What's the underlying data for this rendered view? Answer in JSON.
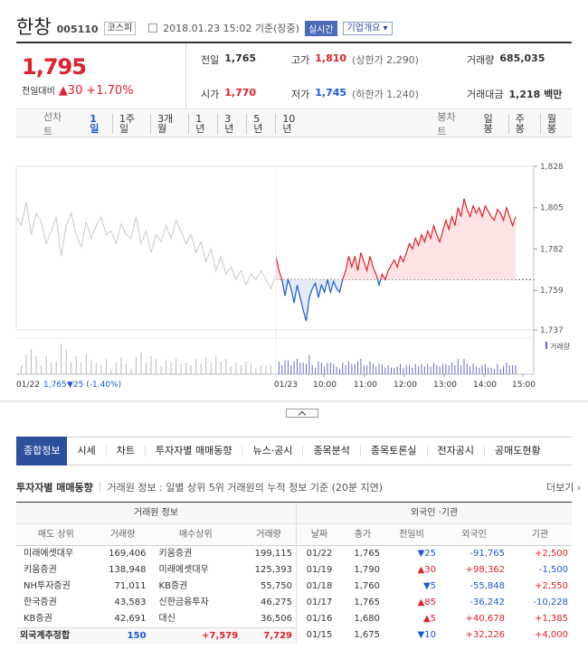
{
  "header": {
    "name": "한창",
    "code": "005110",
    "market": "코스피",
    "time": "2018.01.23 15:02 기준(장중)",
    "realtime": "실시간",
    "info_button": "기업개요 ▾"
  },
  "price": {
    "current": "1,795",
    "change_label": "전일대비",
    "change": "▲30",
    "change_pct": "+1.70%"
  },
  "stats": {
    "prev_label": "전일",
    "prev": "1,765",
    "high_label": "고가",
    "high": "1,810",
    "upper_limit": "(상한가 2,290)",
    "volume_label": "거래량",
    "volume": "685,035",
    "open_label": "시가",
    "open": "1,770",
    "low_label": "저가",
    "low": "1,745",
    "lower_limit": "(하한가 1,240)",
    "amount_label": "거래대금",
    "amount": "1,218 백만"
  },
  "periods": {
    "line_label": "선차트",
    "line": [
      "1일",
      "1주일",
      "3개월",
      "1년",
      "3년",
      "5년",
      "10년"
    ],
    "candle_label": "봉차트",
    "candle": [
      "일봉",
      "주봉",
      "월봉"
    ]
  },
  "chart_data": {
    "type": "line",
    "prev_day_label": "01/22",
    "prev_day_price": "1,765",
    "prev_day_change": "▼25 (-1.40%)",
    "today_label": "01/23",
    "x_ticks": [
      "10:00",
      "11:00",
      "12:00",
      "13:00",
      "14:00",
      "15:00"
    ],
    "y_ticks": [
      "1,828",
      "1,805",
      "1,782",
      "1,759",
      "1,737"
    ],
    "ylim": [
      1737,
      1828
    ],
    "baseline": 1765,
    "volume_label": "거래량",
    "prev_series": [
      1800,
      1795,
      1808,
      1790,
      1802,
      1797,
      1785,
      1792,
      1800,
      1778,
      1795,
      1802,
      1790,
      1783,
      1797,
      1788,
      1795,
      1800,
      1790,
      1792,
      1785,
      1796,
      1790,
      1788,
      1800,
      1785,
      1792,
      1780,
      1790,
      1786,
      1795,
      1788,
      1798,
      1792,
      1785,
      1790,
      1780,
      1786,
      1775,
      1782,
      1770,
      1778,
      1768,
      1772,
      1765,
      1770,
      1762,
      1768,
      1765,
      1770,
      1765,
      1760,
      1768
    ],
    "today_series": [
      1778,
      1770,
      1765,
      1756,
      1765,
      1760,
      1752,
      1762,
      1755,
      1748,
      1742,
      1755,
      1760,
      1763,
      1755,
      1762,
      1758,
      1765,
      1758,
      1764,
      1760,
      1758,
      1765,
      1770,
      1778,
      1772,
      1778,
      1770,
      1780,
      1775,
      1770,
      1778,
      1772,
      1768,
      1762,
      1768,
      1765,
      1770,
      1773,
      1776,
      1772,
      1778,
      1775,
      1780,
      1785,
      1782,
      1788,
      1784,
      1790,
      1786,
      1792,
      1788,
      1795,
      1790,
      1786,
      1792,
      1798,
      1793,
      1800,
      1795,
      1805,
      1800,
      1810,
      1804,
      1800,
      1806,
      1802,
      1805,
      1800,
      1806,
      1803,
      1800,
      1798,
      1804,
      1802,
      1798,
      1805,
      1800,
      1795,
      1800
    ]
  },
  "tabs": [
    "종합정보",
    "시세",
    "차트",
    "투자자별 매매동향",
    "뉴스·공시",
    "종목분석",
    "종목토론실",
    "전자공시",
    "공매도현황"
  ],
  "section": {
    "title": "투자자별 매매동향",
    "note": "거래원 정보 : 일별 상위 5위 거래원의 누적 정보 기준 (20분 지연)",
    "more": "더보기 ›"
  },
  "broker_table": {
    "title": "거래원 정보",
    "headers": [
      "매도 상위",
      "거래량",
      "매수상위",
      "거래량"
    ],
    "rows": [
      [
        "미래에셋대우",
        "169,406",
        "키움증권",
        "199,115"
      ],
      [
        "키움증권",
        "138,948",
        "미래에셋대우",
        "125,393"
      ],
      [
        "NH투자증권",
        "71,011",
        "KB증권",
        "55,750"
      ],
      [
        "한국증권",
        "43,583",
        "신한금융투자",
        "46,275"
      ],
      [
        "KB증권",
        "42,691",
        "대신",
        "36,506"
      ]
    ],
    "total": [
      "외국계추정합",
      "150",
      "+7,579",
      "7,729"
    ]
  },
  "foreign_table": {
    "title": "외국인 ·기관",
    "headers": [
      "날짜",
      "종가",
      "전일비",
      "외국인",
      "기관"
    ],
    "rows": [
      [
        "01/22",
        "1,765",
        "▼25",
        "-91,765",
        "+2,500"
      ],
      [
        "01/19",
        "1,790",
        "▲30",
        "+98,362",
        "-1,500"
      ],
      [
        "01/18",
        "1,760",
        "▼5",
        "-55,848",
        "+2,550"
      ],
      [
        "01/17",
        "1,765",
        "▲85",
        "-36,242",
        "-10,228"
      ],
      [
        "01/16",
        "1,680",
        "▲5",
        "+40,678",
        "+1,385"
      ],
      [
        "01/15",
        "1,675",
        "▼10",
        "+32,226",
        "+4,000"
      ]
    ]
  }
}
